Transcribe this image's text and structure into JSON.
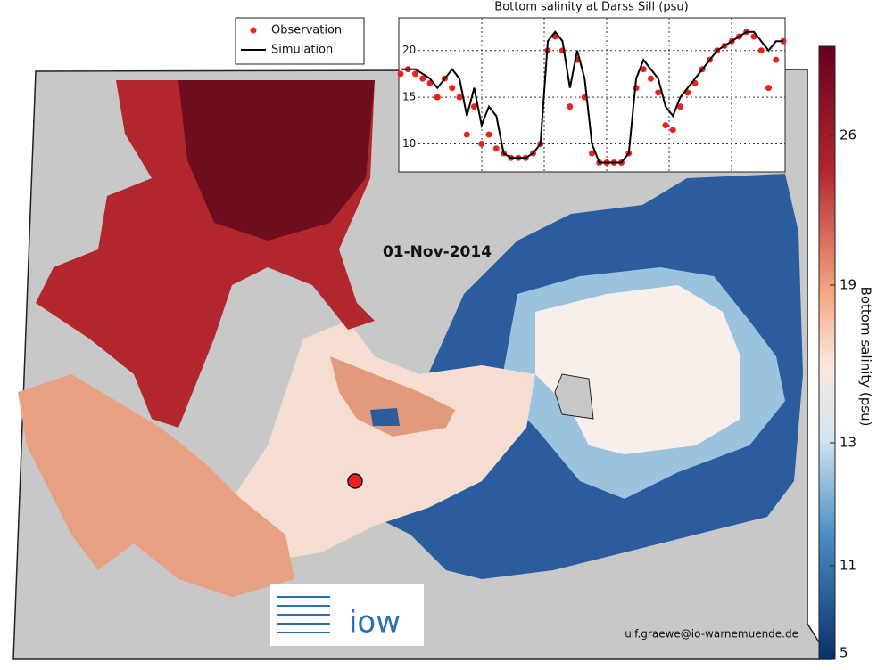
{
  "map": {
    "date_label": "01-Nov-2014",
    "credit": "ulf.graewe@io-warnemuende.de",
    "logo_text": "iow"
  },
  "colorbar": {
    "label": "Bottom salinity (psu)",
    "ticks": [
      26,
      19,
      13,
      11,
      5
    ]
  },
  "chart_data": {
    "type": "line",
    "title": "Bottom salinity at Darss Sill (psu)",
    "ylim": [
      7,
      23.5
    ],
    "yticks": [
      10,
      15,
      20
    ],
    "grid": true,
    "legend": "upper left",
    "series": [
      {
        "name": "Observation",
        "color": "#e8231f",
        "marker": "dot",
        "values": [
          17.5,
          18,
          17.5,
          17,
          16.5,
          15,
          17,
          16,
          15,
          11,
          14,
          10,
          11,
          9.5,
          9,
          8.5,
          8.5,
          8.5,
          9,
          10,
          20,
          21.5,
          20,
          14,
          19,
          15,
          9,
          8,
          8,
          8,
          8,
          9,
          16,
          18,
          17,
          15.5,
          12,
          11.5,
          14,
          15.5,
          16.5,
          18,
          19,
          20,
          20.5,
          21,
          21.5,
          22,
          21.5,
          20,
          16,
          19,
          21
        ]
      },
      {
        "name": "Simulation",
        "color": "#000000",
        "marker": "line",
        "values": [
          18,
          18,
          18,
          17.5,
          17,
          16,
          17,
          18,
          17,
          13,
          16,
          12,
          14,
          13,
          9,
          8.5,
          8.5,
          8.5,
          9,
          10,
          21,
          22,
          21,
          16,
          20,
          17,
          10,
          8,
          8,
          8,
          8,
          9,
          17,
          19,
          18,
          17,
          14,
          13,
          15,
          16,
          17,
          18,
          19,
          20,
          20.5,
          21,
          21.5,
          22,
          22,
          21,
          20,
          21,
          21
        ]
      }
    ]
  }
}
